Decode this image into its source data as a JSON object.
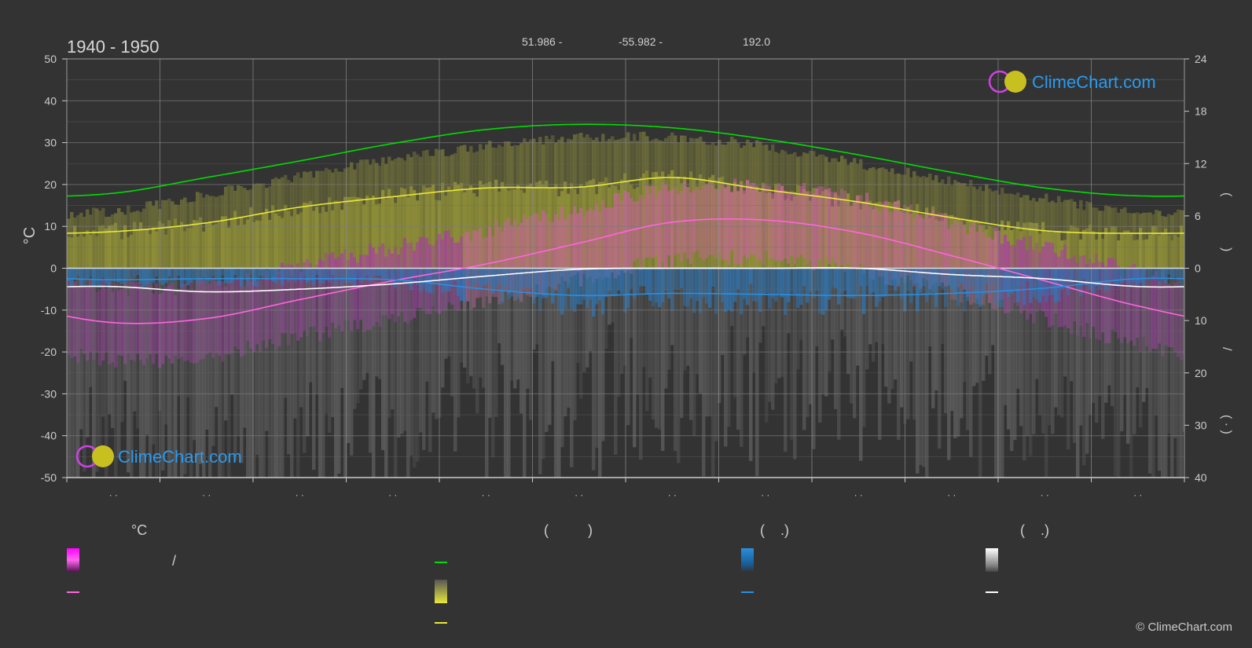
{
  "header": {
    "period": "1940 - 1950",
    "coord_lat": "51.986 -",
    "coord_lon": "-55.982 -",
    "elevation": "192.0"
  },
  "brand": {
    "logo_text": "ClimeChart.com",
    "copyright": "© ClimeChart.com"
  },
  "colors": {
    "background": "#333333",
    "daylight": "#00dd00",
    "sunshine": "#e8e83a",
    "temp_avg": "#ff66dd",
    "rain": "#2a8fe0",
    "snow": "#ffffff",
    "temp_band": "#e040e0",
    "logo_blue": "#2a9bf0"
  },
  "legend": {
    "temp_header": "°C",
    "sun_header": "(          )",
    "rain_header": "(    .)",
    "snow_header": "(    .)",
    "temp_range_sep": "/"
  },
  "chart_data": {
    "type": "line",
    "title": "1940 - 1950",
    "ylabel": "°C",
    "ylim": [
      -50,
      50
    ],
    "y_ticks": [
      "50",
      "40",
      "30",
      "20",
      "10",
      "0",
      "-10",
      "-20",
      "-30",
      "-40",
      "-50"
    ],
    "y2_hours_ticks": [
      "24",
      "18",
      "12",
      "6",
      "0"
    ],
    "y2_hours_range": [
      0,
      24
    ],
    "y2_precip_ticks": [
      "0",
      "10",
      "20",
      "30",
      "40"
    ],
    "y2_precip_range": [
      0,
      40
    ],
    "month_labels": [
      "· ·",
      "· ·",
      "· ·",
      "· ·",
      "· ·",
      "· ·",
      "· ·",
      "· ·",
      "· ·",
      "· ·",
      "· ·",
      "· ·"
    ],
    "grid": true,
    "series": [
      {
        "name": "",
        "key": "daylight",
        "axis": "hours",
        "values": [
          8.6,
          10.4,
          12.3,
          14.3,
          15.9,
          16.5,
          16.1,
          14.8,
          13.0,
          11.0,
          9.2,
          8.3
        ]
      },
      {
        "name": "",
        "key": "sunshine",
        "axis": "hours",
        "values": [
          4.2,
          5.2,
          7.0,
          8.2,
          9.2,
          9.3,
          10.4,
          9.0,
          7.6,
          5.8,
          4.3,
          4.0
        ]
      },
      {
        "name": "",
        "key": "sunshine_top",
        "axis": "hours",
        "values": [
          6.5,
          8.5,
          10.5,
          12.5,
          14.0,
          15.0,
          15.0,
          14.0,
          12.0,
          10.0,
          8.0,
          6.5
        ]
      },
      {
        "name": "",
        "key": "temp_avg",
        "axis": "temp",
        "values": [
          -13,
          -12,
          -7.5,
          -3,
          1,
          6,
          11,
          11.5,
          8.5,
          3,
          -3,
          -9
        ]
      },
      {
        "name": "",
        "key": "rain",
        "axis": "precip",
        "values": [
          2.2,
          2.0,
          2.0,
          2.2,
          4.0,
          5.2,
          4.8,
          5.0,
          5.2,
          4.8,
          3.8,
          2.0
        ]
      },
      {
        "name": "",
        "key": "snow",
        "axis": "precip",
        "values": [
          3.5,
          4.5,
          4.0,
          3.0,
          1.5,
          0.2,
          0.0,
          0.0,
          0.0,
          1.2,
          2.0,
          3.5
        ]
      }
    ]
  }
}
